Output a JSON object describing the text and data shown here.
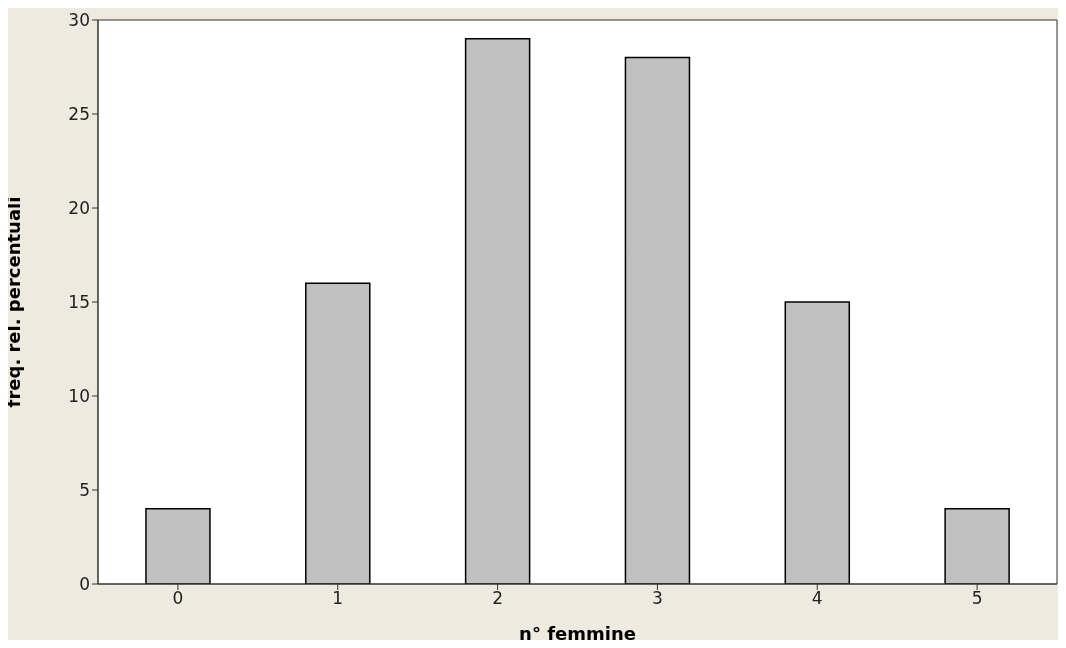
{
  "chart_data": {
    "type": "bar",
    "xlabel": "n° femmine",
    "ylabel": "freq. rel. percentuali",
    "categories": [
      "0",
      "1",
      "2",
      "3",
      "4",
      "5"
    ],
    "values": [
      4,
      16,
      29,
      28,
      15,
      4
    ],
    "color": "#c0c0c0",
    "ylim": [
      0,
      30
    ],
    "yticks": [
      0,
      5,
      10,
      15,
      20,
      25,
      30
    ]
  }
}
